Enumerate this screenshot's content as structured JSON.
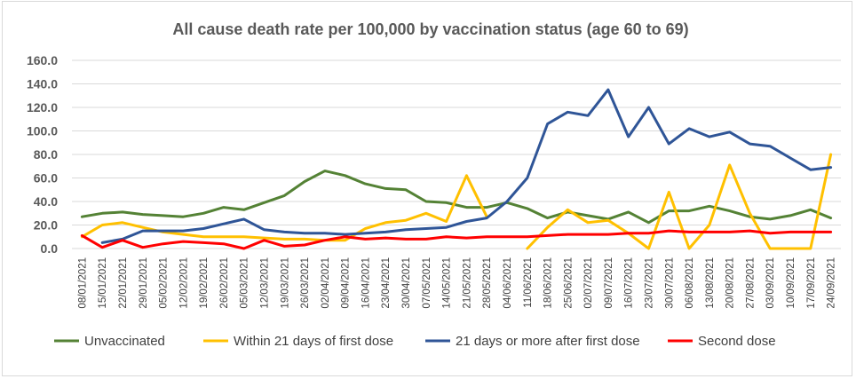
{
  "chart_data": {
    "type": "line",
    "title": "All cause death rate per 100,000 by vaccination status (age 60 to 69)",
    "ylim": [
      0,
      160
    ],
    "yticks": [
      "0.0",
      "20.0",
      "40.0",
      "60.0",
      "80.0",
      "100.0",
      "120.0",
      "140.0",
      "160.0"
    ],
    "grid": true,
    "legend_position": "bottom",
    "categories": [
      "08/01/2021",
      "15/01/2021",
      "22/01/2021",
      "29/01/2021",
      "05/02/2021",
      "12/02/2021",
      "19/02/2021",
      "26/02/2021",
      "05/03/2021",
      "12/03/2021",
      "19/03/2021",
      "26/03/2021",
      "02/04/2021",
      "09/04/2021",
      "16/04/2021",
      "23/04/2021",
      "30/04/2021",
      "07/05/2021",
      "14/05/2021",
      "21/05/2021",
      "28/05/2021",
      "04/06/2021",
      "11/06/2021",
      "18/06/2021",
      "25/06/2021",
      "02/07/2021",
      "09/07/2021",
      "16/07/2021",
      "23/07/2021",
      "30/07/2021",
      "06/08/2021",
      "13/08/2021",
      "20/08/2021",
      "27/08/2021",
      "03/09/2021",
      "10/09/2021",
      "17/09/2021",
      "24/09/2021"
    ],
    "series": [
      {
        "name": "Unvaccinated",
        "color": "#548235",
        "values": [
          27,
          30,
          31,
          29,
          28,
          27,
          30,
          35,
          33,
          39,
          45,
          57,
          66,
          62,
          55,
          51,
          50,
          40,
          39,
          35,
          35,
          39,
          34,
          26,
          31,
          28,
          25,
          31,
          22,
          32,
          32,
          36,
          32,
          27,
          25,
          28,
          33,
          26
        ]
      },
      {
        "name": "Within 21 days of first dose",
        "color": "#ffc000",
        "values": [
          10,
          20,
          22,
          18,
          14,
          12,
          10,
          10,
          10,
          9,
          8,
          8,
          7,
          7,
          17,
          22,
          24,
          30,
          23,
          62,
          27,
          null,
          0,
          18,
          33,
          22,
          24,
          13,
          0,
          48,
          0,
          20,
          71,
          30,
          0,
          0,
          0,
          80
        ]
      },
      {
        "name": "21 days or more after first dose",
        "color": "#2f5597",
        "values": [
          null,
          5,
          8,
          15,
          15,
          15,
          17,
          21,
          25,
          16,
          14,
          13,
          13,
          12,
          13,
          14,
          16,
          17,
          18,
          23,
          26,
          40,
          60,
          106,
          116,
          113,
          135,
          95,
          120,
          89,
          102,
          95,
          99,
          89,
          87,
          77,
          67,
          69
        ]
      },
      {
        "name": "Second dose",
        "color": "#ff0000",
        "values": [
          11,
          1,
          7,
          1,
          4,
          6,
          5,
          4,
          0,
          7,
          2,
          3,
          7,
          10,
          8,
          9,
          8,
          8,
          10,
          9,
          10,
          10,
          10,
          11,
          12,
          12,
          12,
          13,
          13,
          15,
          14,
          14,
          14,
          15,
          13,
          14,
          14,
          14
        ]
      }
    ]
  }
}
